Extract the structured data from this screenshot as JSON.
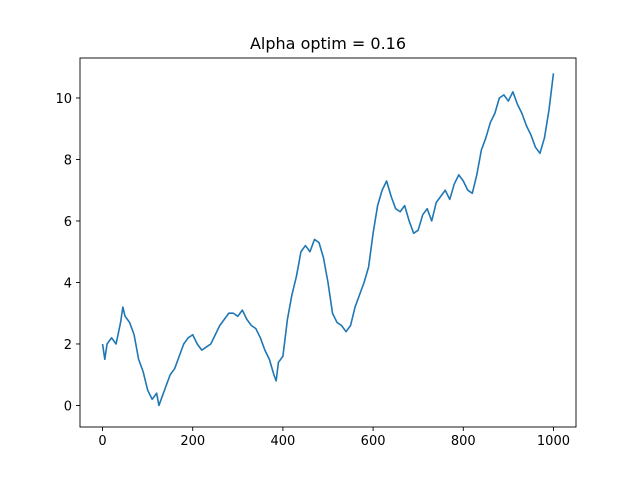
{
  "chart_data": {
    "type": "line",
    "title": "Alpha optim = 0.16",
    "xlabel": "",
    "ylabel": "",
    "xlim": [
      -50,
      1050
    ],
    "ylim": [
      -0.7,
      11.3
    ],
    "xticks": [
      0,
      200,
      400,
      600,
      800,
      1000
    ],
    "yticks": [
      0,
      2,
      4,
      6,
      8,
      10
    ],
    "grid": false,
    "legend": "none",
    "series": [
      {
        "color": "#1f77b4",
        "x": [
          0,
          5,
          10,
          20,
          30,
          40,
          45,
          50,
          60,
          70,
          80,
          90,
          100,
          110,
          120,
          125,
          130,
          140,
          150,
          160,
          170,
          180,
          190,
          200,
          210,
          220,
          230,
          240,
          250,
          260,
          270,
          280,
          290,
          300,
          310,
          320,
          330,
          340,
          350,
          360,
          370,
          380,
          385,
          390,
          400,
          410,
          420,
          430,
          440,
          450,
          460,
          470,
          480,
          490,
          500,
          510,
          520,
          530,
          540,
          550,
          560,
          570,
          580,
          590,
          600,
          610,
          620,
          630,
          640,
          650,
          660,
          670,
          680,
          690,
          700,
          710,
          720,
          730,
          740,
          750,
          760,
          770,
          780,
          790,
          800,
          810,
          820,
          830,
          840,
          850,
          860,
          870,
          880,
          890,
          900,
          910,
          920,
          930,
          940,
          950,
          960,
          970,
          980,
          990,
          1000
        ],
        "y": [
          2.0,
          1.5,
          2.0,
          2.2,
          2.0,
          2.7,
          3.2,
          2.9,
          2.7,
          2.3,
          1.5,
          1.1,
          0.5,
          0.2,
          0.4,
          0.0,
          0.2,
          0.6,
          1.0,
          1.2,
          1.6,
          2.0,
          2.2,
          2.3,
          2.0,
          1.8,
          1.9,
          2.0,
          2.3,
          2.6,
          2.8,
          3.0,
          3.0,
          2.9,
          3.1,
          2.8,
          2.6,
          2.5,
          2.2,
          1.8,
          1.5,
          1.0,
          0.8,
          1.4,
          1.6,
          2.8,
          3.6,
          4.2,
          5.0,
          5.2,
          5.0,
          5.4,
          5.3,
          4.8,
          4.0,
          3.0,
          2.7,
          2.6,
          2.4,
          2.6,
          3.2,
          3.6,
          4.0,
          4.5,
          5.6,
          6.5,
          7.0,
          7.3,
          6.8,
          6.4,
          6.3,
          6.5,
          6.0,
          5.6,
          5.7,
          6.2,
          6.4,
          6.0,
          6.6,
          6.8,
          7.0,
          6.7,
          7.2,
          7.5,
          7.3,
          7.0,
          6.9,
          7.5,
          8.3,
          8.7,
          9.2,
          9.5,
          10.0,
          10.1,
          9.9,
          10.2,
          9.8,
          9.5,
          9.1,
          8.8,
          8.4,
          8.2,
          8.7,
          9.6,
          10.8
        ]
      }
    ]
  }
}
